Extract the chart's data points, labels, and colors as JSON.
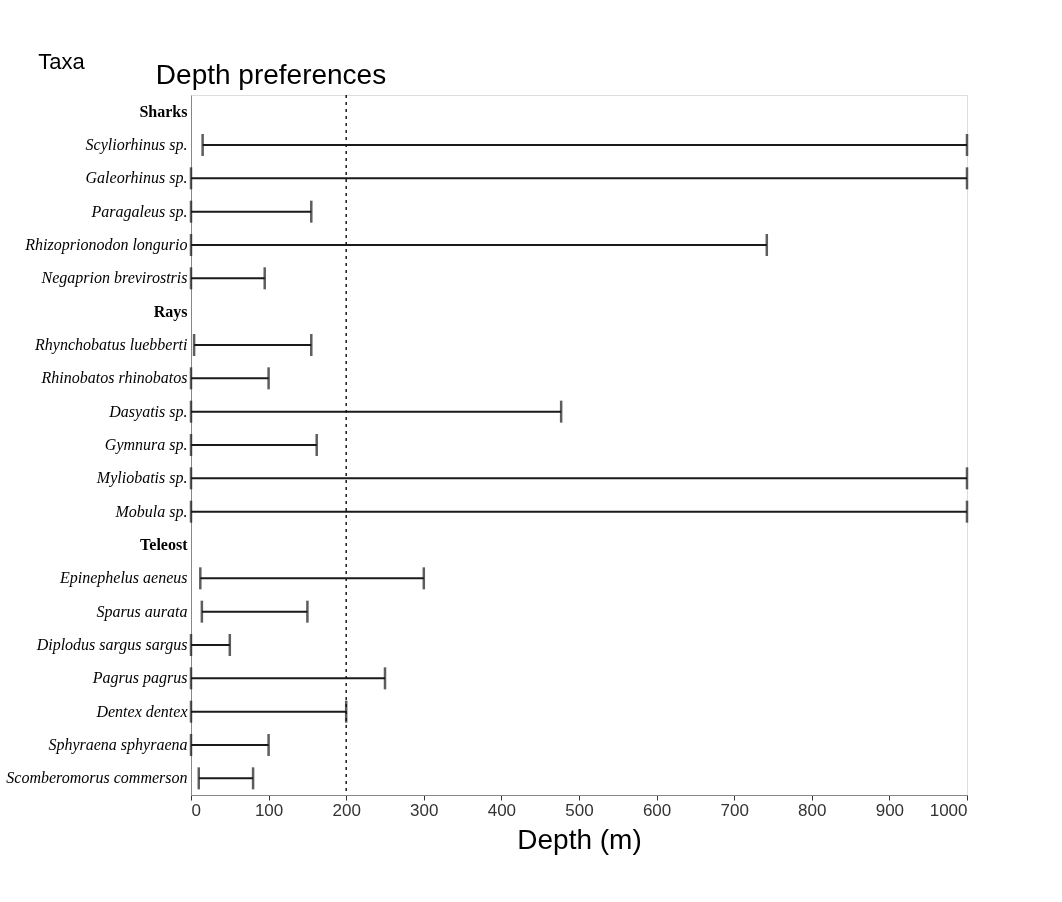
{
  "chart_data": {
    "type": "bar",
    "orientation": "horizontal",
    "title": "Depth preferences",
    "ylabel": "Taxa",
    "xlabel": "Depth (m)",
    "categories": [
      "Sharks",
      "Scyliorhinus sp.",
      "Galeorhinus sp.",
      "Paragaleus sp.",
      "Rhizoprionodon longurio",
      "Negaprion brevirostris",
      "Rays",
      "Rhynchobatus luebberti",
      "Rhinobatos rhinobatos",
      "Dasyatis sp.",
      "Gymnura sp.",
      "Myliobatis sp.",
      "Mobula sp.",
      "Teleost",
      "Epinephelus aeneus",
      "Sparus aurata",
      "Diplodus sargus sargus",
      "Pagrus pagrus",
      "Dentex dentex",
      "Sphyraena sphyraena",
      "Scomberomorus commerson"
    ],
    "base": [
      null,
      15,
      0,
      0,
      0,
      0,
      null,
      4,
      0,
      0,
      0,
      0,
      0,
      null,
      12,
      14,
      0,
      0,
      0,
      0,
      10
    ],
    "values": [
      null,
      985,
      1000,
      155,
      742,
      95,
      null,
      151,
      100,
      477,
      162,
      1000,
      1000,
      null,
      288,
      136,
      50,
      250,
      200,
      100,
      70
    ],
    "color": "#1a1a1a",
    "xlim": [
      0,
      1000
    ],
    "xticks": [
      0,
      100,
      200,
      300,
      400,
      500,
      600,
      700,
      800,
      900,
      1000
    ],
    "ref_lines": [
      {
        "axis": "x",
        "value": 200,
        "line_style": "dotted",
        "color": "#1a1a1a"
      }
    ],
    "grid": false
  }
}
